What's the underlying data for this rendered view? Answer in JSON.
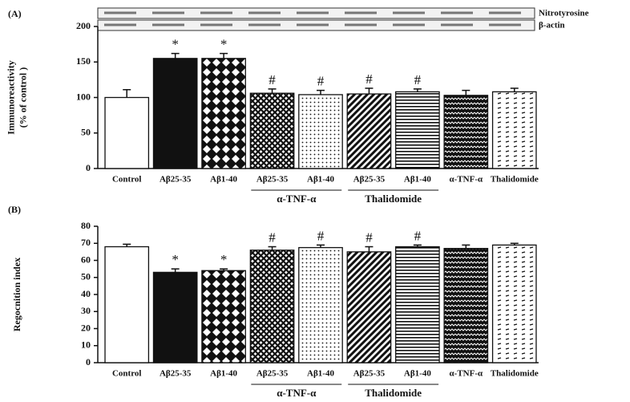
{
  "chart_data": [
    {
      "type": "bar",
      "panel": "(A)",
      "ylabel": [
        "Immunoreactivity",
        "(% of control )"
      ],
      "blot_labels": [
        "Nitrotyrosine",
        "β-actin"
      ],
      "categories": [
        "Control",
        "Aβ25-35",
        "Aβ1-40",
        "Aβ25-35",
        "Aβ1-40",
        "Aβ25-35",
        "Aβ1-40",
        "α-TNF-α",
        "Thalidomide"
      ],
      "values": [
        100,
        155,
        155,
        106,
        104,
        105,
        108,
        103,
        108
      ],
      "errors": [
        11,
        7,
        7,
        6,
        6,
        8,
        4,
        7,
        5
      ],
      "annotations": [
        null,
        "*",
        "*",
        "#",
        "#",
        "#",
        "#",
        null,
        null
      ],
      "fills": [
        "white",
        "black",
        "checker",
        "cross",
        "dots",
        "diag",
        "hstripe",
        "zig",
        "dash"
      ],
      "groups": [
        {
          "label": "α-TNF-α",
          "start": 3,
          "end": 4
        },
        {
          "label": "Thalidomide",
          "start": 5,
          "end": 6
        }
      ],
      "ylim": [
        0,
        200
      ],
      "yticks": [
        0,
        50,
        100,
        150,
        200
      ]
    },
    {
      "type": "bar",
      "panel": "(B)",
      "ylabel": [
        "Regocnition index"
      ],
      "categories": [
        "Control",
        "Aβ25-35",
        "Aβ1-40",
        "Aβ25-35",
        "Aβ1-40",
        "Aβ25-35",
        "Aβ1-40",
        "α-TNF-α",
        "Thalidomide"
      ],
      "values": [
        68,
        53,
        54,
        66,
        67.5,
        65,
        68,
        67,
        69
      ],
      "errors": [
        1.5,
        2,
        1,
        2,
        1.5,
        3,
        1,
        2,
        1
      ],
      "annotations": [
        null,
        "*",
        "*",
        "#",
        "#",
        "#",
        "#",
        null,
        null
      ],
      "fills": [
        "white",
        "black",
        "checker",
        "cross",
        "dots",
        "diag",
        "hstripe",
        "zig",
        "dash"
      ],
      "groups": [
        {
          "label": "α-TNF-α",
          "start": 3,
          "end": 4
        },
        {
          "label": "Thalidomide",
          "start": 5,
          "end": 6
        }
      ],
      "ylim": [
        0,
        80
      ],
      "yticks": [
        0,
        10,
        20,
        30,
        40,
        50,
        60,
        70,
        80
      ]
    }
  ]
}
